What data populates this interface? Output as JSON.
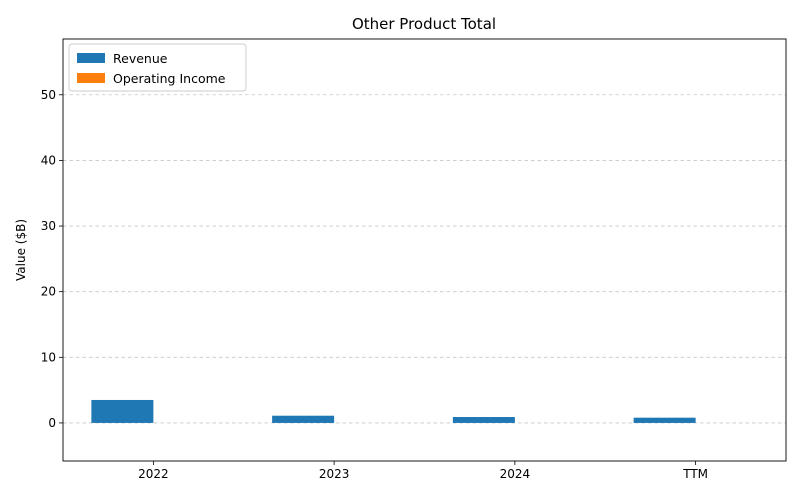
{
  "chart_data": {
    "type": "bar",
    "title": "Other Product Total",
    "xlabel": "",
    "ylabel": "Value ($B)",
    "categories": [
      "2022",
      "2023",
      "2024",
      "TTM"
    ],
    "series": [
      {
        "name": "Revenue",
        "color": "#1f77b4",
        "values": [
          3.5,
          1.1,
          0.9,
          0.8
        ]
      },
      {
        "name": "Operating Income",
        "color": "#ff7f0e",
        "values": [
          0,
          0,
          0,
          0
        ]
      }
    ],
    "ylim": [
      -5.8,
      58.5
    ],
    "yticks": [
      0,
      10,
      20,
      30,
      40,
      50
    ],
    "ytick_labels": [
      "0",
      "10",
      "20",
      "30",
      "40",
      "50"
    ],
    "grid": "y-dashed",
    "legend_position": "top-left"
  }
}
